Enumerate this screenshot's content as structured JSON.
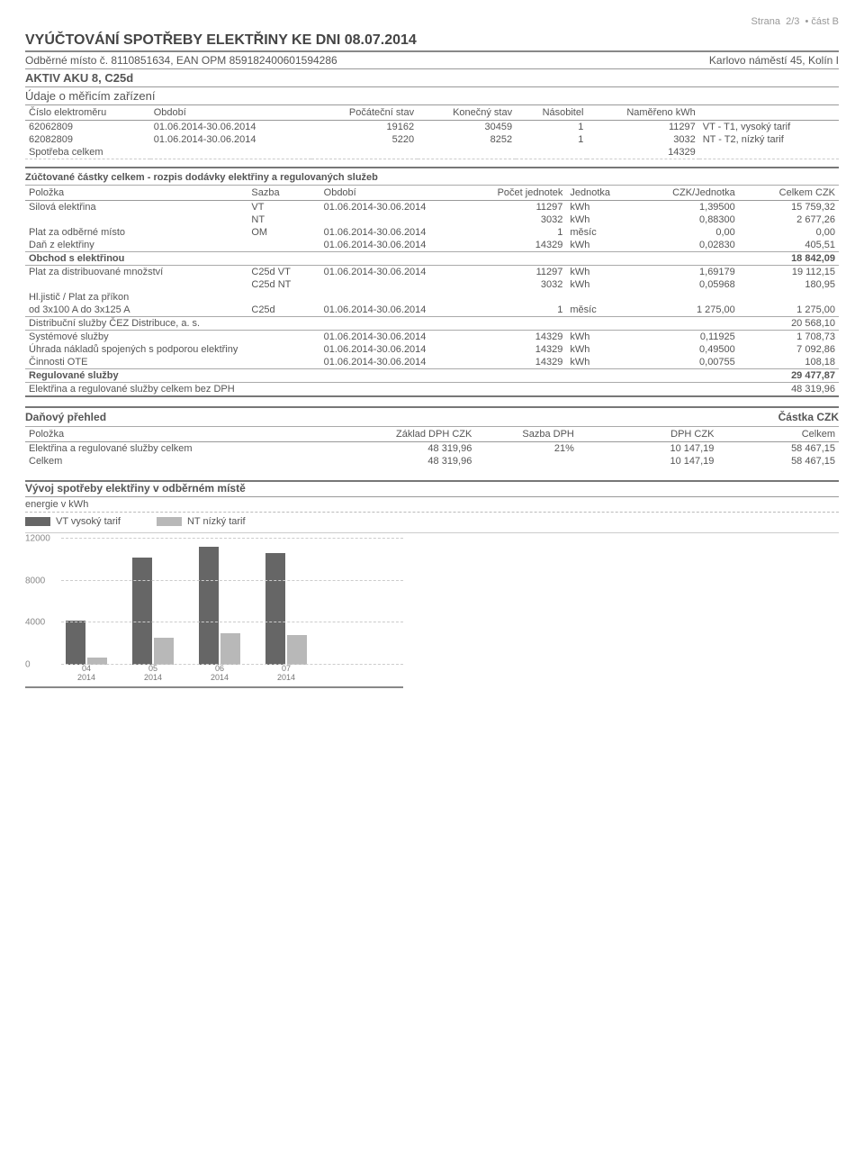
{
  "page_header": {
    "strana": "Strana",
    "page": "2/3",
    "cast": "část B"
  },
  "title": "VYÚČTOVÁNÍ SPOTŘEBY ELEKTŘINY KE DNI 08.07.2014",
  "odberne_misto_line": {
    "left": "Odběrné místo č. 8110851634, EAN OPM 859182400601594286",
    "right": "Karlovo náměstí 45, Kolín I"
  },
  "aktiv": "AKTIV AKU 8, C25d",
  "meter_section": {
    "label": "Údaje o měřicím zařízení",
    "headers": [
      "Číslo elektroměru",
      "Období",
      "Počáteční stav",
      "Konečný stav",
      "Násobitel",
      "Naměřeno kWh",
      ""
    ],
    "rows": [
      [
        "62062809",
        "01.06.2014-30.06.2014",
        "19162",
        "30459",
        "1",
        "11297",
        "VT - T1, vysoký tarif"
      ],
      [
        "62082809",
        "01.06.2014-30.06.2014",
        "5220",
        "8252",
        "1",
        "3032",
        "NT - T2, nízký tarif"
      ]
    ],
    "total_label": "Spotřeba celkem",
    "total_value": "14329"
  },
  "billing_section": {
    "heading": "Zúčtované částky celkem - rozpis dodávky elektřiny a regulovaných služeb",
    "headers": [
      "Položka",
      "Sazba",
      "Období",
      "Počet jednotek",
      "Jednotka",
      "CZK/Jednotka",
      "Celkem CZK"
    ],
    "rows": [
      [
        "Silová elektřina",
        "VT",
        "01.06.2014-30.06.2014",
        "11297",
        "kWh",
        "1,39500",
        "15 759,32"
      ],
      [
        "",
        "NT",
        "",
        "3032",
        "kWh",
        "0,88300",
        "2 677,26"
      ],
      [
        "Plat za odběrné místo",
        "OM",
        "01.06.2014-30.06.2014",
        "1",
        "měsíc",
        "0,00",
        "0,00"
      ],
      [
        "Daň z elektřiny",
        "",
        "01.06.2014-30.06.2014",
        "14329",
        "kWh",
        "0,02830",
        "405,51"
      ]
    ],
    "subtotal1": {
      "label": "Obchod s elektřinou",
      "value": "18 842,09"
    },
    "rows2": [
      [
        "Plat za distribuované množství",
        "C25d VT",
        "01.06.2014-30.06.2014",
        "11297",
        "kWh",
        "1,69179",
        "19 112,15"
      ],
      [
        "",
        "C25d NT",
        "",
        "3032",
        "kWh",
        "0,05968",
        "180,95"
      ],
      [
        "Hl.jistič / Plat za příkon",
        "",
        "",
        "",
        "",
        "",
        ""
      ],
      [
        "od 3x100 A do 3x125 A",
        "C25d",
        "01.06.2014-30.06.2014",
        "1",
        "měsíc",
        "1 275,00",
        "1 275,00"
      ]
    ],
    "subtotal2": {
      "label": "Distribuční služby ČEZ Distribuce, a. s.",
      "value": "20 568,10"
    },
    "rows3": [
      [
        "Systémové služby",
        "",
        "01.06.2014-30.06.2014",
        "14329",
        "kWh",
        "0,11925",
        "1 708,73"
      ],
      [
        "Úhrada nákladů spojených s podporou elektřiny",
        "",
        "01.06.2014-30.06.2014",
        "14329",
        "kWh",
        "0,49500",
        "7 092,86"
      ],
      [
        "Činnosti OTE",
        "",
        "01.06.2014-30.06.2014",
        "14329",
        "kWh",
        "0,00755",
        "108,18"
      ]
    ],
    "subtotal3": {
      "label": "Regulované služby",
      "value": "29 477,87"
    },
    "grand": {
      "label": "Elektřina a regulované služby celkem bez DPH",
      "value": "48 319,96"
    }
  },
  "tax_section": {
    "heading": "Daňový přehled",
    "heading_right": "Částka CZK",
    "headers": [
      "Položka",
      "Základ DPH CZK",
      "Sazba DPH",
      "DPH CZK",
      "Celkem"
    ],
    "rows": [
      [
        "Elektřina a regulované služby celkem",
        "48 319,96",
        "21%",
        "10 147,19",
        "58 467,15"
      ],
      [
        "Celkem",
        "48 319,96",
        "",
        "10 147,19",
        "58 467,15"
      ]
    ]
  },
  "chart": {
    "title": "Vývoj spotřeby elektřiny v odběrném místě",
    "subtitle": "energie v kWh",
    "legend_vt": "VT vysoký tarif",
    "legend_nt": "NT nízký tarif",
    "vt_color": "#666666",
    "nt_color": "#b8b8b8",
    "y_max": 12000,
    "y_ticks": [
      12000,
      8000,
      4000,
      0
    ],
    "bars": [
      {
        "label_top": "04",
        "label_bot": "2014",
        "vt": 4200,
        "nt": 700
      },
      {
        "label_top": "05",
        "label_bot": "2014",
        "vt": 10200,
        "nt": 2600
      },
      {
        "label_top": "06",
        "label_bot": "2014",
        "vt": 11200,
        "nt": 3000
      },
      {
        "label_top": "07",
        "label_bot": "2014",
        "vt": 10600,
        "nt": 2800
      }
    ]
  }
}
